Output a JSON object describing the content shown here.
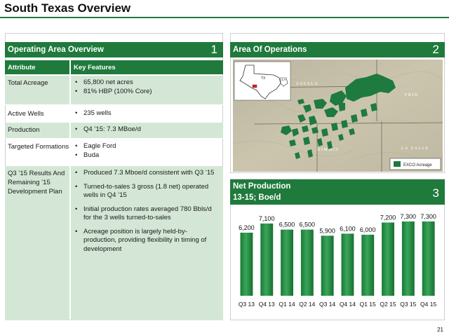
{
  "slide": {
    "title": "South Texas Overview",
    "page_number": "21"
  },
  "left_panel": {
    "title": "Operating Area Overview",
    "number": "1",
    "col_attribute": "Attribute",
    "col_key_features": "Key Features",
    "rows": [
      {
        "attribute": "Total Acreage",
        "features": [
          "65,800 net acres",
          "81% HBP (100% Core)"
        ]
      },
      {
        "attribute": "Active Wells",
        "features": [
          "235 wells"
        ]
      },
      {
        "attribute": "Production",
        "features": [
          "Q4 ’15: 7.3 MBoe/d"
        ]
      },
      {
        "attribute": "Targeted Formations",
        "features": [
          "Eagle Ford",
          "Buda"
        ]
      },
      {
        "attribute": "Q3 ’15 Results And Remaining ’15 Development Plan",
        "features": [
          "Produced 7.3 Mboe/d consistent with Q3 ’15",
          "Turned-to-sales 3 gross (1.8 net) operated wells in Q4 ’15",
          "Initial production rates averaged 780 Bbls/d for the 3 wells turned-to-sales",
          "Acreage position is largely held-by-production, providing flexibility in timing of development"
        ]
      }
    ]
  },
  "map_panel": {
    "title": "Area Of Operations",
    "number": "2",
    "labels": {
      "state_tx": "TX",
      "state_la": "LA",
      "county_zavala": "ZAVALA",
      "county_frio": "FRIO",
      "county_dimmit": "DIMMIT",
      "county_la_salle": "LA SALLE",
      "legend": "EXCO Acreage"
    },
    "colors": {
      "acreage": "#1e7a3e",
      "terrain": "#c9c0a8"
    }
  },
  "chart_panel": {
    "title_line1": "Net Production",
    "title_line2": "13-15; Boe/d",
    "number": "3"
  },
  "chart_data": {
    "type": "bar",
    "title": "Net Production 13-15; Boe/d",
    "categories": [
      "Q3 13",
      "Q4 13",
      "Q1 14",
      "Q2 14",
      "Q3 14",
      "Q4 14",
      "Q1 15",
      "Q2 15",
      "Q3 15",
      "Q4 15"
    ],
    "values": [
      6200,
      7100,
      6500,
      6500,
      5900,
      6100,
      6000,
      7200,
      7300,
      7300
    ],
    "value_labels": [
      "6,200",
      "7,100",
      "6,500",
      "6,500",
      "5,900",
      "6,100",
      "6,000",
      "7,200",
      "7,300",
      "7,300"
    ],
    "ylim": [
      0,
      7300
    ],
    "bar_color": "#1f8a3e",
    "grid": false,
    "legend": false
  }
}
